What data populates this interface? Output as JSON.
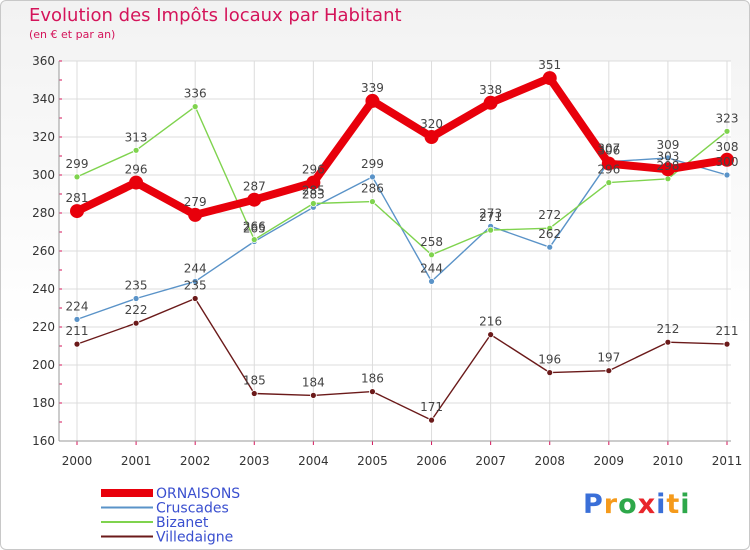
{
  "chart_data": {
    "type": "line",
    "title": "Evolution des Impôts locaux par Habitant",
    "subtitle": "(en € et par an)",
    "x": [
      "2000",
      "2001",
      "2002",
      "2003",
      "2004",
      "2005",
      "2006",
      "2007",
      "2008",
      "2009",
      "2010",
      "2011"
    ],
    "ylim": [
      160,
      360
    ],
    "yticks": [
      160,
      180,
      200,
      220,
      240,
      260,
      280,
      300,
      320,
      340,
      360
    ],
    "grid": true,
    "series": [
      {
        "name": "ORNAISONS",
        "color": "#e8000b",
        "values": [
          281,
          296,
          279,
          287,
          296,
          339,
          320,
          338,
          351,
          306,
          303,
          308
        ]
      },
      {
        "name": "Cruscades",
        "color": "#5a93c8",
        "values": [
          224,
          235,
          244,
          265,
          283,
          299,
          244,
          273,
          262,
          307,
          309,
          300
        ]
      },
      {
        "name": "Bizanet",
        "color": "#7fd34e",
        "values": [
          299,
          313,
          336,
          266,
          285,
          286,
          258,
          271,
          272,
          296,
          298,
          323
        ]
      },
      {
        "name": "Villedaigne",
        "color": "#6b1a1a",
        "values": [
          211,
          222,
          235,
          185,
          184,
          186,
          171,
          216,
          196,
          197,
          212,
          211
        ]
      }
    ]
  },
  "logo": {
    "letters": [
      "P",
      "r",
      "o",
      "x",
      "i",
      "t",
      "i"
    ],
    "colors": [
      "#3a6fd8",
      "#f59a1b",
      "#2ea84a",
      "#e8262b",
      "#3a6fd8",
      "#f59a1b",
      "#2ea84a"
    ]
  }
}
